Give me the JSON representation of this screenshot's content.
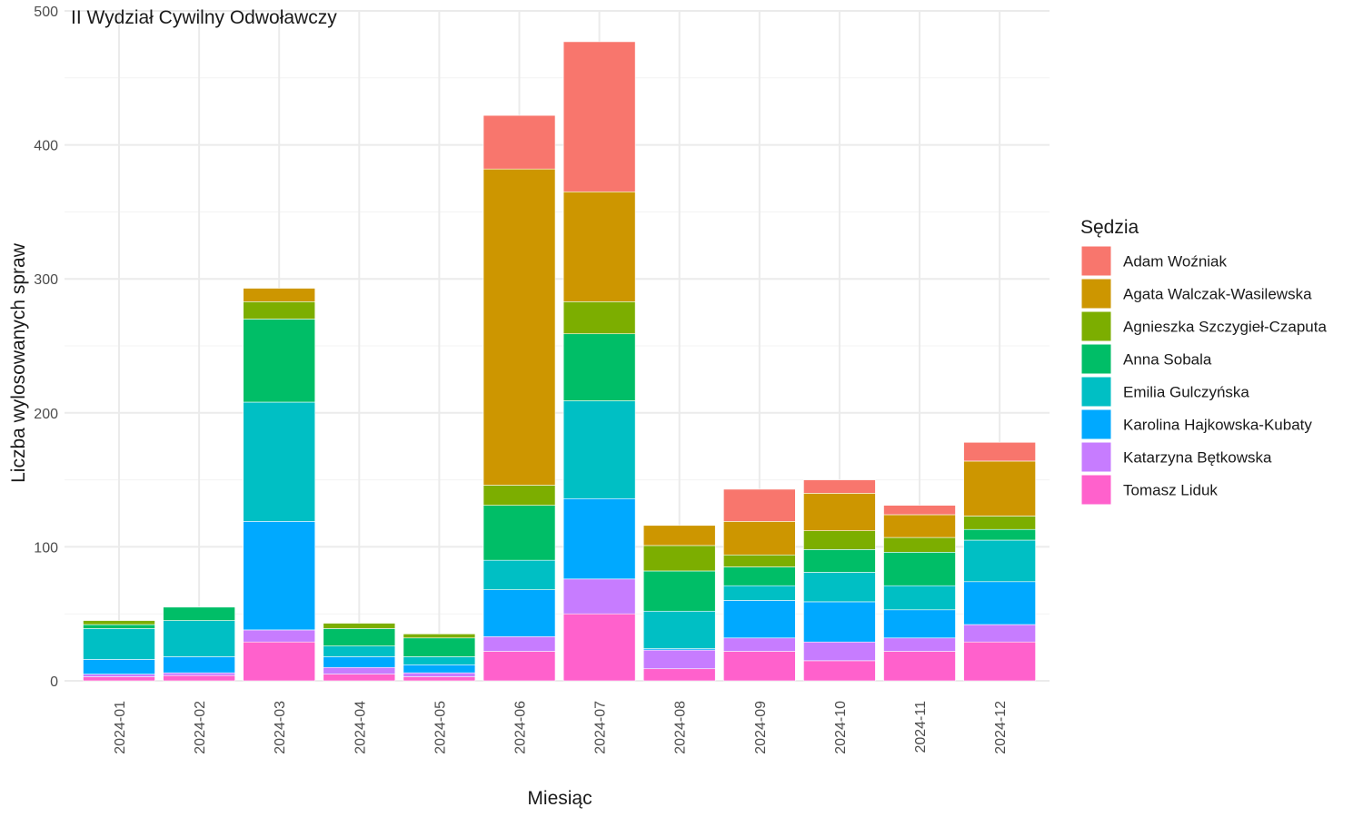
{
  "chart_data": {
    "type": "bar",
    "stacked": true,
    "title": "II Wydział Cywilny Odwoławczy",
    "xlabel": "Miesiąc",
    "ylabel": "Liczba wylosowanych spraw",
    "ylim": [
      0,
      500
    ],
    "yticks": [
      0,
      100,
      200,
      300,
      400,
      500
    ],
    "grid": true,
    "legend_title": "Sędzia",
    "legend_position": "right",
    "categories": [
      "2024-01",
      "2024-02",
      "2024-03",
      "2024-04",
      "2024-05",
      "2024-06",
      "2024-07",
      "2024-08",
      "2024-09",
      "2024-10",
      "2024-11",
      "2024-12"
    ],
    "series": [
      {
        "name": "Adam Woźniak",
        "color": "#F8766D",
        "values": [
          0,
          0,
          0,
          0,
          0,
          40,
          112,
          0,
          24,
          10,
          7,
          14
        ]
      },
      {
        "name": "Agata Walczak-Wasilewska",
        "color": "#CD9600",
        "values": [
          0,
          0,
          10,
          0,
          0,
          236,
          82,
          15,
          25,
          28,
          17,
          41
        ]
      },
      {
        "name": "Agnieszka Szczygieł-Czaputa",
        "color": "#7CAE00",
        "values": [
          3,
          0,
          13,
          4,
          3,
          15,
          24,
          19,
          9,
          14,
          11,
          10
        ]
      },
      {
        "name": "Anna Sobala",
        "color": "#00BE67",
        "values": [
          3,
          10,
          62,
          13,
          14,
          41,
          50,
          30,
          14,
          17,
          25,
          8
        ]
      },
      {
        "name": "Emilia Gulczyńska",
        "color": "#00BFC4",
        "values": [
          23,
          27,
          89,
          8,
          6,
          22,
          73,
          28,
          11,
          22,
          18,
          31
        ]
      },
      {
        "name": "Karolina Hajkowska-Kubaty",
        "color": "#00A9FF",
        "values": [
          11,
          12,
          81,
          8,
          6,
          35,
          60,
          1,
          28,
          30,
          21,
          32
        ]
      },
      {
        "name": "Katarzyna Bętkowska",
        "color": "#C77CFF",
        "values": [
          2,
          2,
          9,
          5,
          3,
          11,
          26,
          14,
          10,
          14,
          10,
          13
        ]
      },
      {
        "name": "Tomasz Liduk",
        "color": "#FF61CC",
        "values": [
          3,
          4,
          29,
          5,
          3,
          22,
          50,
          9,
          22,
          15,
          22,
          29
        ]
      }
    ]
  }
}
